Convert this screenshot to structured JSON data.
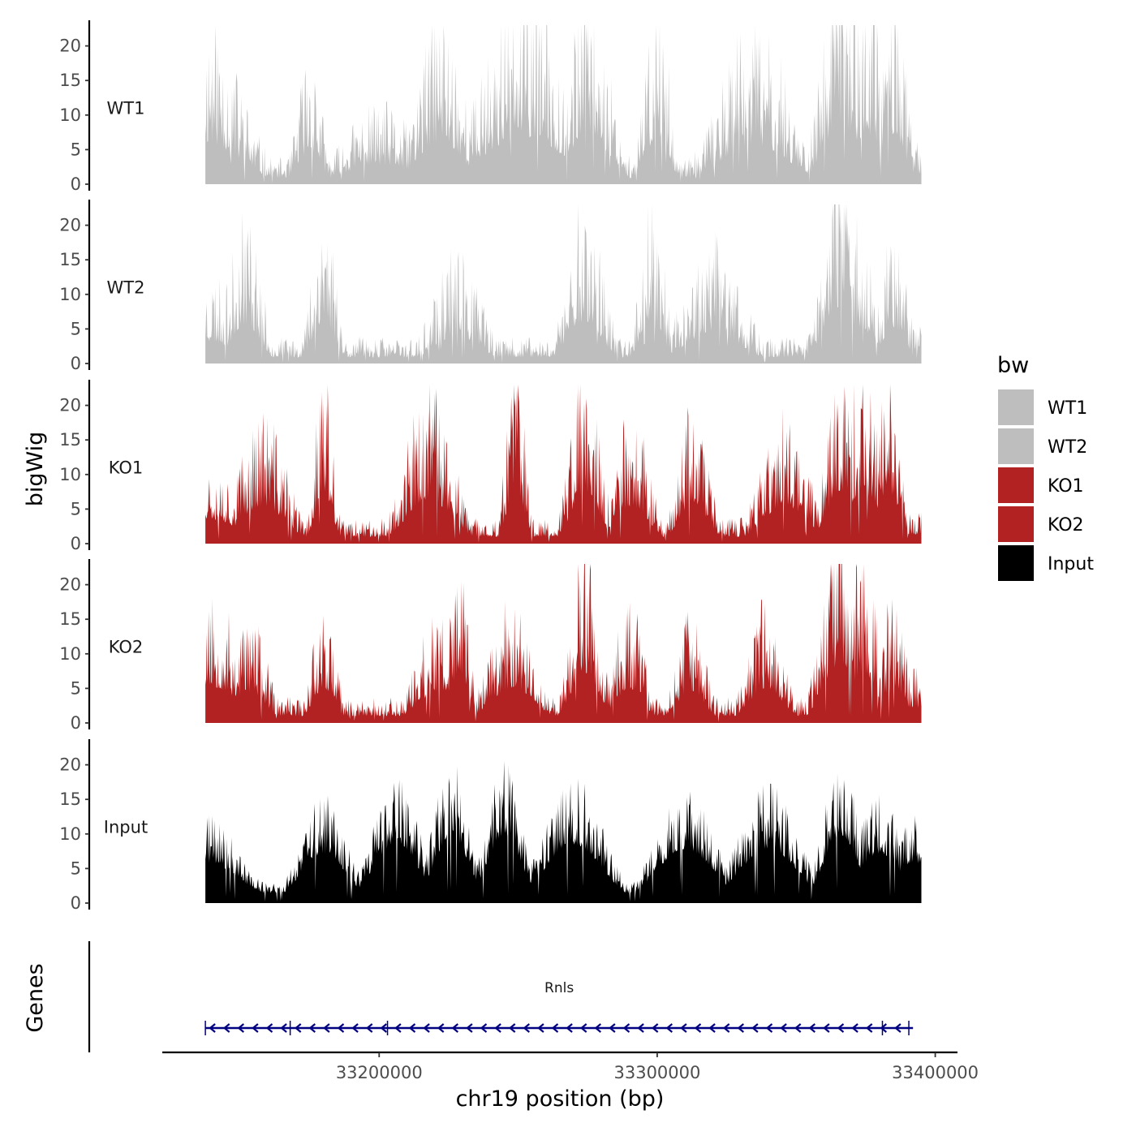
{
  "chart_data": {
    "type": "area",
    "chromosome": "chr19",
    "xlabel": "chr19 position (bp)",
    "ylabel": "bigWig",
    "gene_track_label": "Genes",
    "x_range": [
      33137500,
      33395000
    ],
    "x_axis_range": [
      33122000,
      33408000
    ],
    "x_ticks": [
      33200000,
      33300000,
      33400000
    ],
    "x_tick_labels": [
      "33200000",
      "33300000",
      "33400000"
    ],
    "y_range": [
      0,
      23
    ],
    "y_ticks": [
      0,
      5,
      10,
      15,
      20
    ],
    "y_tick_labels": [
      "0",
      "5",
      "10",
      "15",
      "20"
    ],
    "legend": {
      "title": "bw",
      "position": "right",
      "entries": [
        {
          "label": "WT1",
          "color": "#bebebe"
        },
        {
          "label": "WT2",
          "color": "#bebebe"
        },
        {
          "label": "KO1",
          "color": "#b22222"
        },
        {
          "label": "KO2",
          "color": "#b22222"
        },
        {
          "label": "Input",
          "color": "#000000"
        }
      ]
    },
    "tracks": [
      {
        "name": "WT1",
        "color": "#bebebe",
        "noise": 0.6,
        "rng_seed": 11,
        "peaks": [
          [
            33137500,
            15,
            12
          ],
          [
            33175000,
            12,
            4
          ],
          [
            33200000,
            7,
            12
          ],
          [
            33222000,
            15,
            8
          ],
          [
            33252000,
            17,
            14
          ],
          [
            33275000,
            19,
            6
          ],
          [
            33279000,
            13,
            6
          ],
          [
            33300000,
            17,
            4
          ],
          [
            33335000,
            14,
            12
          ],
          [
            33366000,
            22,
            6
          ],
          [
            33375000,
            17,
            8
          ],
          [
            33385000,
            18,
            4
          ],
          [
            33392000,
            4,
            6
          ]
        ]
      },
      {
        "name": "WT2",
        "color": "#bebebe",
        "noise": 0.6,
        "rng_seed": 23,
        "peaks": [
          [
            33137500,
            8,
            12
          ],
          [
            33152000,
            14,
            5
          ],
          [
            33180000,
            15,
            4
          ],
          [
            33228000,
            10,
            8
          ],
          [
            33274000,
            15,
            6
          ],
          [
            33298000,
            16,
            4
          ],
          [
            33320000,
            11,
            10
          ],
          [
            33366000,
            19,
            6
          ],
          [
            33370000,
            14,
            8
          ],
          [
            33385000,
            13,
            4
          ],
          [
            33392000,
            5,
            6
          ]
        ]
      },
      {
        "name": "KO1",
        "color": "#b22222",
        "noise": 0.55,
        "rng_seed": 37,
        "peaks": [
          [
            33137500,
            8,
            12
          ],
          [
            33158000,
            12,
            8
          ],
          [
            33180000,
            16,
            3
          ],
          [
            33218000,
            14,
            8
          ],
          [
            33249000,
            18,
            3
          ],
          [
            33274000,
            16,
            5
          ],
          [
            33291000,
            12,
            6
          ],
          [
            33313000,
            13,
            5
          ],
          [
            33346000,
            12,
            8
          ],
          [
            33366000,
            17,
            5
          ],
          [
            33374000,
            16,
            6
          ],
          [
            33383000,
            16,
            4
          ],
          [
            33392000,
            3,
            6
          ]
        ]
      },
      {
        "name": "KO2",
        "color": "#b22222",
        "noise": 0.55,
        "rng_seed": 53,
        "peaks": [
          [
            33137500,
            12,
            12
          ],
          [
            33153000,
            10,
            6
          ],
          [
            33180000,
            11,
            4
          ],
          [
            33222000,
            10,
            8
          ],
          [
            33229000,
            16,
            3
          ],
          [
            33248000,
            11,
            8
          ],
          [
            33274000,
            16,
            5
          ],
          [
            33290000,
            11,
            5
          ],
          [
            33312000,
            10,
            5
          ],
          [
            33339000,
            11,
            6
          ],
          [
            33366000,
            19,
            6
          ],
          [
            33374000,
            16,
            5
          ],
          [
            33385000,
            12,
            4
          ],
          [
            33392000,
            5,
            6
          ]
        ]
      },
      {
        "name": "Input",
        "color": "#000000",
        "noise": 0.35,
        "rng_seed": 71,
        "peaks": [
          [
            33137500,
            9,
            12
          ],
          [
            33180000,
            11,
            8
          ],
          [
            33206000,
            13,
            8
          ],
          [
            33226000,
            15,
            6
          ],
          [
            33245000,
            15,
            6
          ],
          [
            33270000,
            13,
            10
          ],
          [
            33310000,
            12,
            10
          ],
          [
            33340000,
            12,
            10
          ],
          [
            33366000,
            15,
            6
          ],
          [
            33380000,
            11,
            8
          ],
          [
            33392000,
            9,
            6
          ]
        ]
      }
    ],
    "gene": {
      "name": "Rnls",
      "start": 33137500,
      "end": 33392000,
      "strand": "-",
      "color": "#000080",
      "exons": [
        33137500,
        33168000,
        33203000,
        33381000,
        33390500
      ]
    }
  }
}
